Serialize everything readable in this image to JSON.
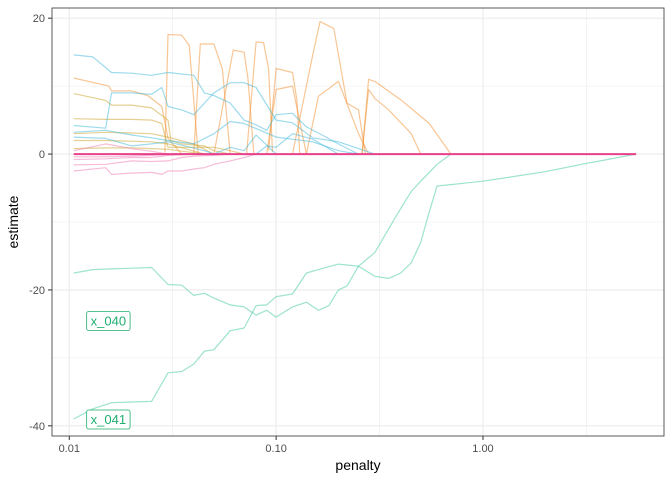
{
  "chart_data": {
    "type": "line",
    "title": "",
    "xlabel": "penalty",
    "ylabel": "estimate",
    "x_scale": "log10",
    "xlim": [
      0.00825,
      7.5
    ],
    "ylim": [
      -41.5,
      21.5
    ],
    "x_ticks": [
      {
        "value": 0.01,
        "label": "0.01"
      },
      {
        "value": 0.1,
        "label": "0.10"
      },
      {
        "value": 1.0,
        "label": "1.00"
      }
    ],
    "x_minor_ticks": [
      0.0316,
      0.316,
      3.16
    ],
    "y_ticks": [
      {
        "value": 20,
        "label": "20"
      },
      {
        "value": 0,
        "label": "0"
      },
      {
        "value": -20,
        "label": "-20"
      },
      {
        "value": -40,
        "label": "-40"
      }
    ],
    "y_minor_ticks": [
      10,
      -10,
      -30
    ],
    "grid": true,
    "legend": "none",
    "colors": {
      "orange": "#F28E2B",
      "gold": "#C9A227",
      "teal": "#3CC8A0",
      "blue": "#3BB8DB",
      "pink": "#F07AB0",
      "pink_strong": "#E8408A",
      "annotation": "#1DAF6E",
      "grid": "#EBEBEB",
      "panel_border": "#333333"
    },
    "series": [
      {
        "color": "teal",
        "x": [
          0.0105,
          0.013,
          0.016,
          0.02,
          0.025,
          0.03,
          0.035,
          0.04,
          0.045,
          0.05,
          0.06,
          0.07,
          0.08,
          0.09,
          0.1,
          0.12,
          0.14,
          0.16,
          0.18,
          0.2,
          0.22,
          0.25,
          0.3,
          0.35,
          0.4,
          0.45,
          0.5,
          0.6,
          0.7,
          0.8,
          1.0,
          2.0,
          3.0,
          4.0,
          5.5
        ],
        "y": [
          -17.5,
          -17,
          -16.9,
          -16.8,
          -16.7,
          -19.2,
          -19.3,
          -20.8,
          -20.5,
          -21.2,
          -22.2,
          -22.5,
          -23.7,
          -23,
          -24,
          -22.5,
          -21.8,
          -23,
          -22.3,
          -20,
          -19.4,
          -16.5,
          -14.5,
          -11,
          -8,
          -5.5,
          -4,
          -1.5,
          0,
          0,
          0,
          0,
          0,
          0,
          0
        ]
      },
      {
        "color": "teal",
        "x": [
          0.0105,
          0.013,
          0.016,
          0.02,
          0.025,
          0.03,
          0.035,
          0.04,
          0.045,
          0.05,
          0.06,
          0.07,
          0.08,
          0.09,
          0.1,
          0.12,
          0.14,
          0.16,
          0.2,
          0.25,
          0.3,
          0.35,
          0.4,
          0.45,
          0.5,
          0.55,
          0.6,
          0.7,
          0.8,
          1.0,
          2.0,
          3.0,
          4.0,
          5.5
        ],
        "y": [
          -39,
          -37.5,
          -36.6,
          -36.5,
          -36.4,
          -32.2,
          -32,
          -30.9,
          -29,
          -28.8,
          -26,
          -25.6,
          -22.3,
          -22.2,
          -21,
          -20.6,
          -17.5,
          -17,
          -16.2,
          -16.5,
          -18,
          -18.3,
          -17.5,
          -16,
          -13,
          -8.5,
          -4.7,
          -4.5,
          -4.3,
          -4,
          -2.6,
          -1.5,
          -0.8,
          0
        ]
      },
      {
        "color": "orange",
        "x": [
          0.0105,
          0.0155,
          0.016,
          0.02,
          0.024,
          0.028,
          0.03,
          0.035
        ],
        "y": [
          11.2,
          10.0,
          9.3,
          9.3,
          8.6,
          7.0,
          2.3,
          0
        ]
      },
      {
        "color": "orange",
        "x": [
          0.029,
          0.03,
          0.035,
          0.038,
          0.042
        ],
        "y": [
          0.2,
          17.6,
          17.5,
          16.0,
          0
        ]
      },
      {
        "color": "orange",
        "x": [
          0.04,
          0.043,
          0.05,
          0.055,
          0.06
        ],
        "y": [
          0.2,
          16.2,
          16.2,
          12.5,
          0
        ]
      },
      {
        "color": "orange",
        "x": [
          0.05,
          0.062,
          0.07,
          0.073,
          0.078
        ],
        "y": [
          0,
          15.3,
          15.0,
          11.2,
          0
        ]
      },
      {
        "color": "orange",
        "x": [
          0.072,
          0.08,
          0.087,
          0.092,
          0.096
        ],
        "y": [
          0,
          16.5,
          16.4,
          12.5,
          0.3
        ]
      },
      {
        "color": "orange",
        "x": [
          0.092,
          0.1,
          0.12,
          0.126,
          0.13
        ],
        "y": [
          0.5,
          12.6,
          12.0,
          8.0,
          0
        ]
      },
      {
        "color": "orange",
        "x": [
          0.12,
          0.15,
          0.163,
          0.19,
          0.22,
          0.25,
          0.27
        ],
        "y": [
          0,
          14.5,
          19.5,
          18.5,
          7.5,
          6.5,
          0
        ]
      },
      {
        "color": "orange",
        "x": [
          0.26,
          0.28,
          0.3,
          0.4,
          0.55,
          0.7
        ],
        "y": [
          0,
          11,
          10.7,
          8,
          4.5,
          0
        ]
      },
      {
        "color": "orange",
        "x": [
          0.26,
          0.28,
          0.3,
          0.35,
          0.45,
          0.5
        ],
        "y": [
          0,
          9.5,
          8.2,
          6.5,
          3,
          0
        ]
      },
      {
        "color": "orange",
        "x": [
          0.14,
          0.16,
          0.2,
          0.25,
          0.28
        ],
        "y": [
          0,
          8.5,
          10.7,
          3,
          0
        ]
      },
      {
        "color": "orange",
        "x": [
          0.09,
          0.1,
          0.12,
          0.14
        ],
        "y": [
          0,
          9.5,
          10.0,
          0
        ]
      },
      {
        "color": "gold",
        "x": [
          0.0105,
          0.015,
          0.016,
          0.02,
          0.025,
          0.03,
          0.031,
          0.035,
          0.045,
          0.05,
          0.06
        ],
        "y": [
          8.9,
          7.9,
          7.2,
          7.2,
          6.8,
          5.0,
          2.0,
          1.5,
          1.2,
          0.5,
          0
        ]
      },
      {
        "color": "gold",
        "x": [
          0.0105,
          0.015,
          0.02,
          0.025,
          0.028,
          0.03,
          0.05,
          0.06,
          0.07
        ],
        "y": [
          5.2,
          5.1,
          5.1,
          5.0,
          4.5,
          1.0,
          1.0,
          0.5,
          0
        ]
      },
      {
        "color": "gold",
        "x": [
          0.0105,
          0.015,
          0.02,
          0.025,
          0.03,
          0.04,
          0.05
        ],
        "y": [
          3.0,
          3.2,
          3.1,
          3.0,
          2.5,
          1.5,
          0
        ]
      },
      {
        "color": "gold",
        "x": [
          0.0105,
          0.015,
          0.02,
          0.025,
          0.03,
          0.045
        ],
        "y": [
          2.0,
          2.0,
          1.9,
          1.8,
          1.5,
          0
        ]
      },
      {
        "color": "gold",
        "x": [
          0.0105,
          0.015,
          0.02,
          0.025,
          0.03,
          0.045
        ],
        "y": [
          0.8,
          0.9,
          0.9,
          0.8,
          0.7,
          0
        ]
      },
      {
        "color": "blue",
        "x": [
          0.0105,
          0.013,
          0.016,
          0.02,
          0.025,
          0.03,
          0.04,
          0.045,
          0.05,
          0.06,
          0.07,
          0.08,
          0.09,
          0.1,
          0.12,
          0.14,
          0.16,
          0.2,
          0.25
        ],
        "y": [
          14.6,
          14.3,
          12.0,
          11.9,
          11.6,
          12.0,
          11.6,
          9.0,
          8.6,
          7.5,
          5.0,
          4.3,
          3.5,
          5.8,
          6.0,
          4.0,
          3.1,
          1.5,
          0
        ]
      },
      {
        "color": "blue",
        "x": [
          0.0105,
          0.015,
          0.016,
          0.02,
          0.025,
          0.028,
          0.03,
          0.035,
          0.04,
          0.05,
          0.06,
          0.07,
          0.08,
          0.1,
          0.12,
          0.15,
          0.2,
          0.3
        ],
        "y": [
          4.2,
          3.8,
          9.0,
          9.0,
          8.8,
          9.8,
          7.0,
          6.5,
          5.8,
          9.0,
          10.5,
          10.5,
          9.8,
          5.0,
          4.6,
          2.4,
          1.8,
          0
        ]
      },
      {
        "color": "blue",
        "x": [
          0.0105,
          0.015,
          0.02,
          0.025,
          0.03,
          0.04,
          0.05,
          0.06,
          0.07,
          0.1,
          0.15,
          0.2,
          0.25
        ],
        "y": [
          3.2,
          3.5,
          2.8,
          2.4,
          2.0,
          1.5,
          3.0,
          4.8,
          4.5,
          2.5,
          1.8,
          0.5,
          0
        ]
      },
      {
        "color": "blue",
        "x": [
          0.0105,
          0.015,
          0.02,
          0.025,
          0.03,
          0.045,
          0.05,
          0.06,
          0.07,
          0.08,
          0.1
        ],
        "y": [
          2.5,
          2.3,
          1.2,
          1.5,
          1.8,
          0.5,
          0.0,
          1.0,
          0.5,
          2.8,
          0
        ]
      },
      {
        "color": "blue",
        "x": [
          0.08,
          0.09,
          0.1,
          0.12,
          0.15,
          0.2
        ],
        "y": [
          0,
          1.2,
          1.0,
          3.0,
          2.2,
          0
        ]
      },
      {
        "color": "pink",
        "x": [
          0.0105,
          0.015,
          0.016,
          0.02,
          0.025,
          0.028,
          0.03,
          0.035,
          0.04,
          0.045,
          0.05,
          0.06,
          0.07,
          0.08
        ],
        "y": [
          -2.5,
          -2.0,
          -3.0,
          -2.8,
          -2.7,
          -3.0,
          -2.5,
          -2.5,
          -2.2,
          -2.0,
          -1.5,
          -1.0,
          -0.5,
          0
        ]
      },
      {
        "color": "pink",
        "x": [
          0.0105,
          0.015,
          0.02,
          0.025,
          0.03,
          0.035,
          0.04,
          0.05,
          0.06
        ],
        "y": [
          -1.6,
          -1.5,
          -1.0,
          -1.1,
          -1.0,
          -0.5,
          -0.3,
          -0.2,
          0
        ]
      },
      {
        "color": "pink",
        "x": [
          0.0105,
          0.015,
          0.02,
          0.025,
          0.03,
          0.04
        ],
        "y": [
          -0.8,
          -0.7,
          -0.5,
          -0.5,
          -0.2,
          0
        ]
      },
      {
        "color": "pink",
        "x": [
          0.0105,
          0.015,
          0.02,
          0.025,
          0.03
        ],
        "y": [
          -0.4,
          -0.4,
          -0.3,
          -0.2,
          0
        ]
      },
      {
        "color": "pink",
        "x": [
          0.0105,
          0.015,
          0.02,
          0.025,
          0.03
        ],
        "y": [
          0.5,
          1.5,
          0.8,
          0.4,
          0
        ]
      },
      {
        "color": "pink_strong",
        "x": [
          0.0105,
          5.5
        ],
        "y": [
          0,
          0
        ]
      }
    ],
    "annotations": [
      {
        "text": "x_040",
        "x": 0.0105,
        "y": -24.5
      },
      {
        "text": "x_041",
        "x": 0.0105,
        "y": -39.0
      }
    ]
  }
}
